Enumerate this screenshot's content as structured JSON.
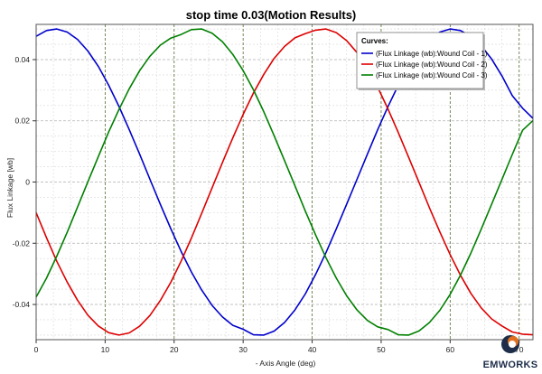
{
  "chart_data": {
    "type": "line",
    "title": "stop time 0.03(Motion Results)",
    "xlabel": "- Axis Angle (deg)",
    "ylabel": "Flux Linkage [wb]",
    "xlim": [
      0,
      72
    ],
    "ylim": [
      -0.0515,
      0.0515
    ],
    "xticks": [
      0,
      10,
      20,
      30,
      40,
      50,
      60,
      70
    ],
    "xtick_labels": [
      "0",
      "10",
      "20",
      "30",
      "40",
      "50",
      "60",
      "70"
    ],
    "yticks": [
      0.04,
      0.02,
      0,
      -0.02,
      -0.04
    ],
    "ytick_labels": [
      "0.04",
      "0.02",
      "0",
      "-0.02",
      "-0.04"
    ],
    "grid": true,
    "legend": {
      "title": "Curves:",
      "placement": "top-right"
    },
    "x": [
      0,
      1.5,
      3,
      4.5,
      6,
      7.5,
      9,
      10.5,
      12,
      13.5,
      15,
      16.5,
      18,
      19.5,
      21,
      22.5,
      24,
      25.5,
      27,
      28.5,
      30,
      31.5,
      33,
      34.5,
      36,
      37.5,
      39,
      40.5,
      42,
      43.5,
      45,
      46.5,
      48,
      49.5,
      51,
      52.5,
      54,
      55.5,
      57,
      58.5,
      60,
      61.5,
      63,
      64.5,
      66,
      67.5,
      69,
      70.5,
      72
    ],
    "series": [
      {
        "name": "(Flux Linkage (wb):Wound Coil - 1)",
        "color": "#0000cc",
        "values": [
          0.0476,
          0.0495,
          0.05,
          0.049,
          0.0466,
          0.0428,
          0.0378,
          0.0317,
          0.0247,
          0.0171,
          0.0091,
          0.0009,
          -0.0073,
          -0.0152,
          -0.0226,
          -0.0294,
          -0.0353,
          -0.0403,
          -0.0441,
          -0.0468,
          -0.0481,
          -0.0499,
          -0.05,
          -0.0487,
          -0.0459,
          -0.0418,
          -0.0366,
          -0.0302,
          -0.0231,
          -0.0153,
          -0.0072,
          0.0009,
          0.0091,
          0.0171,
          0.0247,
          0.0317,
          0.0378,
          0.0428,
          0.0466,
          0.049,
          0.05,
          0.0495,
          0.0476,
          0.0445,
          0.0402,
          0.0347,
          0.0282,
          0.0241,
          0.0208
        ]
      },
      {
        "name": "(Flux Linkage (wb):Wound Coil - 2)",
        "color": "#dd0000",
        "values": [
          -0.01,
          -0.0182,
          -0.0259,
          -0.0327,
          -0.0386,
          -0.0435,
          -0.047,
          -0.0492,
          -0.05,
          -0.0493,
          -0.0471,
          -0.0436,
          -0.0387,
          -0.0328,
          -0.0259,
          -0.0183,
          -0.0102,
          -0.0019,
          0.0064,
          0.0144,
          0.0221,
          0.0291,
          0.0352,
          0.0404,
          0.0443,
          0.0471,
          0.0485,
          0.0496,
          0.05,
          0.0488,
          0.0462,
          0.0423,
          0.0372,
          0.031,
          0.0238,
          0.0161,
          0.008,
          -0.0002,
          -0.0084,
          -0.0163,
          -0.0237,
          -0.0305,
          -0.0364,
          -0.0411,
          -0.0447,
          -0.047,
          -0.049,
          -0.0497,
          -0.0499
        ]
      },
      {
        "name": "(Flux Linkage (wb):Wound Coil - 3)",
        "color": "#008000",
        "values": [
          -0.0376,
          -0.0314,
          -0.0242,
          -0.0164,
          -0.0082,
          0.0001,
          0.0083,
          0.0163,
          0.0237,
          0.0305,
          0.0364,
          0.0411,
          0.0447,
          0.047,
          0.0482,
          0.0498,
          0.05,
          0.0486,
          0.0458,
          0.0417,
          0.0364,
          0.0301,
          0.0229,
          0.0151,
          0.007,
          -0.0012,
          -0.0094,
          -0.0173,
          -0.0247,
          -0.0314,
          -0.0372,
          -0.0418,
          -0.0452,
          -0.0473,
          -0.0482,
          -0.0499,
          -0.05,
          -0.0486,
          -0.0459,
          -0.0419,
          -0.0367,
          -0.0304,
          -0.0232,
          -0.0154,
          -0.0073,
          0.0008,
          0.009,
          0.0169,
          0.0201
        ]
      }
    ]
  },
  "branding": {
    "name": "EMWORKS"
  }
}
